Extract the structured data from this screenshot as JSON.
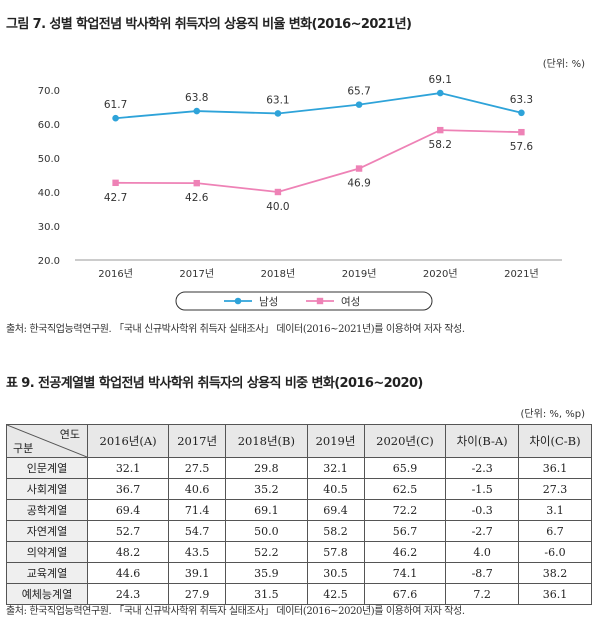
{
  "figure": {
    "title": "그림 7. 성별 학업전념 박사학위 취득자의 상용직 비율 변화(2016~2021년)",
    "unit": "(단위: %)",
    "source": "출처: 한국직업능력연구원. 「국내 신규박사학위 취득자 실태조사」 데이터(2016~2021년)를 이용하여 저자 작성."
  },
  "chart_data": {
    "type": "line",
    "categories": [
      "2016년",
      "2017년",
      "2018년",
      "2019년",
      "2020년",
      "2021년"
    ],
    "series": [
      {
        "name": "남성",
        "values": [
          61.7,
          63.8,
          63.1,
          65.7,
          69.1,
          63.3
        ],
        "color": "#2ea3d9",
        "marker": "circle"
      },
      {
        "name": "여성",
        "values": [
          42.7,
          42.6,
          40.0,
          46.9,
          58.2,
          57.6
        ],
        "color": "#ee82b6",
        "marker": "square"
      }
    ],
    "ylim": [
      20.0,
      70.0
    ],
    "yticks": [
      "20.0",
      "30.0",
      "40.0",
      "50.0",
      "60.0",
      "70.0"
    ],
    "grid": false,
    "legend": "bottom"
  },
  "table": {
    "title": "표 9. 전공계열별 학업전념 박사학위 취득자의 상용직 비중 변화(2016~2020)",
    "unit": "(단위: %, %p)",
    "corner_top": "연도",
    "corner_bottom": "구분",
    "headers": [
      "2016년(A)",
      "2017년",
      "2018년(B)",
      "2019년",
      "2020년(C)",
      "차이(B-A)",
      "차이(C-B)"
    ],
    "rows": [
      [
        "인문계열",
        "32.1",
        "27.5",
        "29.8",
        "32.1",
        "65.9",
        "-2.3",
        "36.1"
      ],
      [
        "사회계열",
        "36.7",
        "40.6",
        "35.2",
        "40.5",
        "62.5",
        "-1.5",
        "27.3"
      ],
      [
        "공학계열",
        "69.4",
        "71.4",
        "69.1",
        "69.4",
        "72.2",
        "-0.3",
        "3.1"
      ],
      [
        "자연계열",
        "52.7",
        "54.7",
        "50.0",
        "58.2",
        "56.7",
        "-2.7",
        "6.7"
      ],
      [
        "의약계열",
        "48.2",
        "43.5",
        "52.2",
        "57.8",
        "46.2",
        "4.0",
        "-6.0"
      ],
      [
        "교육계열",
        "44.6",
        "39.1",
        "35.9",
        "30.5",
        "74.1",
        "-8.7",
        "38.2"
      ],
      [
        "예체능계열",
        "24.3",
        "27.9",
        "31.5",
        "42.5",
        "67.6",
        "7.2",
        "36.1"
      ]
    ],
    "source": "출처: 한국직업능력연구원. 「국내 신규박사학위 취득자 실태조사」 데이터(2016~2020년)를 이용하여 저자 작성."
  }
}
